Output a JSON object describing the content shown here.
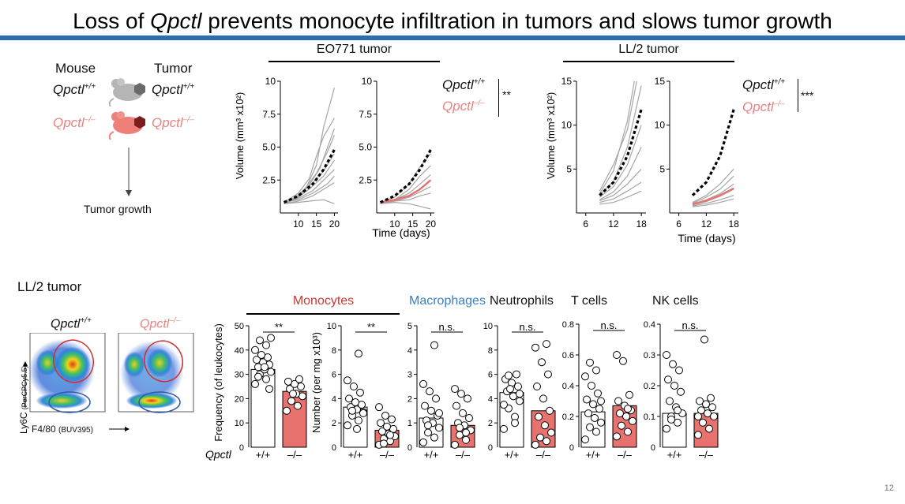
{
  "title": {
    "pre": "Loss of ",
    "gene": "Qpctl",
    "post": " prevents monocyte infiltration in tumors and slows tumor growth"
  },
  "schematic": {
    "mouse_label": "Mouse",
    "tumor_label": "Tumor",
    "wt_label": "Qpctl",
    "wt_sup": "+/+",
    "ko_label": "Qpctl",
    "ko_sup": "–/–",
    "arrow_label": "Tumor growth"
  },
  "colors": {
    "accent_bar": "#2a6db3",
    "ko": "#e8726e",
    "ko_text": "#e8837f",
    "wt_line": "#000000",
    "gray_line": "#a5a5a5",
    "macrophage_blue": "#3a7fc1",
    "monocyte_red": "#c33b34"
  },
  "growth": {
    "eo771_header": "EO771 tumor",
    "ll2_header": "LL/2 tumor",
    "ylabel": "Volume (mm³ x10²)",
    "xlabel": "Time (days)",
    "eo771_sig": "**",
    "ll2_sig": "***"
  },
  "flow": {
    "section_title": "LL/2 tumor",
    "wt_label": "Qpctl",
    "wt_sup": "+/+",
    "ko_label": "Qpctl",
    "ko_sup": "–/–",
    "yaxis_label": "Ly6C",
    "yaxis_sub": "(PerCPCy5.5)",
    "xaxis_label": "F4/80",
    "xaxis_sub": "(BUV395)"
  },
  "dot_panels": {
    "genotype_label": "Qpctl",
    "group_labels": [
      "+/+",
      "–/–"
    ],
    "freq_ylabel": "Frequency (of leukocytes)",
    "num_ylabel": "Number (per mg x10³)"
  },
  "chart_data": [
    {
      "type": "line",
      "title": "EO771 tumor",
      "panel": "Qpctl+/+",
      "xlabel": "",
      "ylabel": "Volume (mm³ x10²)",
      "x_ticks": [
        10,
        15,
        20
      ],
      "y_ticks": [
        "2.5",
        "5.0",
        "7.5",
        "10"
      ],
      "xlim": [
        5,
        21
      ],
      "ylim": [
        0,
        10
      ],
      "mean": {
        "x": [
          6,
          10,
          14,
          17,
          20
        ],
        "y": [
          0.8,
          1.3,
          2.2,
          3.3,
          4.8
        ],
        "color": "#000000",
        "dashed": true
      },
      "individual": [
        [
          [
            6,
            0.8
          ],
          [
            9,
            1.0
          ],
          [
            12,
            1.8
          ],
          [
            15,
            3.6
          ],
          [
            17,
            6.5
          ],
          [
            20,
            9.5
          ]
        ],
        [
          [
            6,
            0.8
          ],
          [
            10,
            1.5
          ],
          [
            13,
            2.6
          ],
          [
            15,
            4.3
          ],
          [
            17,
            5.8
          ],
          [
            20,
            7.2
          ]
        ],
        [
          [
            6,
            0.9
          ],
          [
            9,
            1.1
          ],
          [
            12,
            1.9
          ],
          [
            15,
            3.0
          ],
          [
            18,
            4.6
          ],
          [
            20,
            5.9
          ]
        ],
        [
          [
            6,
            0.7
          ],
          [
            10,
            1.2
          ],
          [
            13,
            2.1
          ],
          [
            16,
            3.4
          ],
          [
            20,
            6.4
          ]
        ],
        [
          [
            6,
            0.8
          ],
          [
            10,
            1.3
          ],
          [
            14,
            2.3
          ],
          [
            17,
            3.2
          ],
          [
            20,
            4.5
          ]
        ],
        [
          [
            6,
            0.8
          ],
          [
            9,
            1.0
          ],
          [
            13,
            1.8
          ],
          [
            17,
            2.8
          ],
          [
            20,
            4.0
          ]
        ],
        [
          [
            6,
            0.7
          ],
          [
            10,
            1.1
          ],
          [
            14,
            1.7
          ],
          [
            17,
            2.5
          ],
          [
            20,
            3.3
          ]
        ],
        [
          [
            6,
            0.8
          ],
          [
            10,
            1.0
          ],
          [
            14,
            1.5
          ],
          [
            18,
            2.2
          ],
          [
            20,
            2.8
          ]
        ],
        [
          [
            6,
            0.7
          ],
          [
            10,
            0.9
          ],
          [
            14,
            1.3
          ],
          [
            17,
            1.8
          ],
          [
            20,
            2.3
          ]
        ],
        [
          [
            6,
            0.7
          ],
          [
            10,
            0.8
          ],
          [
            13,
            0.9
          ],
          [
            17,
            1.0
          ],
          [
            20,
            0.7
          ]
        ]
      ]
    },
    {
      "type": "line",
      "title": "EO771 tumor",
      "panel": "Qpctl-/-",
      "xlabel": "Time (days)",
      "ylabel": "",
      "x_ticks": [
        10,
        15,
        20
      ],
      "y_ticks": [
        "2.5",
        "5.0",
        "7.5",
        "10"
      ],
      "xlim": [
        5,
        21
      ],
      "ylim": [
        0,
        10
      ],
      "series": [
        {
          "name": "Qpctl+/+",
          "x": [
            6,
            10,
            14,
            17,
            20
          ],
          "y": [
            0.8,
            1.3,
            2.2,
            3.3,
            4.8
          ],
          "color": "#000000",
          "dashed": true
        },
        {
          "name": "Qpctl-/-",
          "x": [
            6,
            10,
            14,
            17,
            20
          ],
          "y": [
            0.8,
            1.0,
            1.3,
            1.8,
            2.5
          ],
          "color": "#e8726e",
          "dashed": false
        }
      ],
      "individual": [
        [
          [
            6,
            0.8
          ],
          [
            10,
            1.2
          ],
          [
            14,
            2.2
          ],
          [
            17,
            3.5
          ],
          [
            20,
            4.5
          ]
        ],
        [
          [
            6,
            0.7
          ],
          [
            10,
            1.0
          ],
          [
            14,
            1.8
          ],
          [
            17,
            2.8
          ],
          [
            20,
            3.6
          ]
        ],
        [
          [
            6,
            0.8
          ],
          [
            10,
            1.0
          ],
          [
            14,
            1.5
          ],
          [
            17,
            2.2
          ],
          [
            20,
            2.9
          ]
        ],
        [
          [
            6,
            0.7
          ],
          [
            10,
            0.9
          ],
          [
            14,
            1.2
          ],
          [
            17,
            1.6
          ],
          [
            20,
            2.0
          ]
        ],
        [
          [
            6,
            0.8
          ],
          [
            10,
            0.9
          ],
          [
            14,
            1.0
          ],
          [
            17,
            1.3
          ],
          [
            20,
            1.5
          ]
        ],
        [
          [
            6,
            0.7
          ],
          [
            10,
            0.8
          ],
          [
            14,
            0.7
          ],
          [
            17,
            0.5
          ],
          [
            20,
            0.3
          ]
        ]
      ]
    },
    {
      "type": "line",
      "title": "LL/2 tumor",
      "panel": "Qpctl+/+",
      "xlabel": "",
      "ylabel": "Volume (mm³ x10²)",
      "x_ticks": [
        6,
        12,
        18
      ],
      "y_ticks": [
        "5",
        "10",
        "15"
      ],
      "xlim": [
        4,
        19
      ],
      "ylim": [
        0,
        15
      ],
      "mean": {
        "x": [
          9,
          12,
          15,
          18
        ],
        "y": [
          2.0,
          3.5,
          6.5,
          11.8
        ],
        "color": "#000000",
        "dashed": true
      },
      "individual": [
        [
          [
            9,
            2.5
          ],
          [
            12,
            5.5
          ],
          [
            15,
            9.5
          ],
          [
            17,
            15
          ]
        ],
        [
          [
            9,
            2.2
          ],
          [
            12,
            4.8
          ],
          [
            15,
            10.5
          ],
          [
            16.5,
            15
          ]
        ],
        [
          [
            9,
            2.0
          ],
          [
            12,
            3.6
          ],
          [
            15,
            7.5
          ],
          [
            18,
            14.5
          ]
        ],
        [
          [
            9,
            1.8
          ],
          [
            12,
            3.0
          ],
          [
            15,
            5.5
          ],
          [
            18,
            10.0
          ]
        ],
        [
          [
            9,
            1.5
          ],
          [
            12,
            2.4
          ],
          [
            15,
            4.2
          ],
          [
            18,
            7.5
          ]
        ],
        [
          [
            9,
            1.4
          ],
          [
            12,
            2.0
          ],
          [
            15,
            3.3
          ],
          [
            18,
            5.0
          ]
        ],
        [
          [
            9,
            1.2
          ],
          [
            12,
            1.6
          ],
          [
            15,
            2.5
          ],
          [
            18,
            3.5
          ]
        ],
        [
          [
            9,
            1.0
          ],
          [
            12,
            1.2
          ],
          [
            15,
            1.8
          ],
          [
            18,
            2.5
          ]
        ]
      ]
    },
    {
      "type": "line",
      "title": "LL/2 tumor",
      "panel": "Qpctl-/-",
      "xlabel": "Time (days)",
      "ylabel": "",
      "x_ticks": [
        6,
        12,
        18
      ],
      "y_ticks": [
        "5",
        "10",
        "15"
      ],
      "xlim": [
        4,
        19
      ],
      "ylim": [
        0,
        15
      ],
      "series": [
        {
          "name": "Qpctl+/+",
          "x": [
            9,
            12,
            15,
            18
          ],
          "y": [
            2.0,
            3.5,
            6.5,
            11.8
          ],
          "color": "#000000",
          "dashed": true
        },
        {
          "name": "Qpctl-/-",
          "x": [
            9,
            12,
            15,
            18
          ],
          "y": [
            1.0,
            1.4,
            2.0,
            2.8
          ],
          "color": "#e8726e",
          "dashed": false
        }
      ],
      "individual": [
        [
          [
            9,
            1.2
          ],
          [
            12,
            2.0
          ],
          [
            15,
            3.3
          ],
          [
            18,
            5.0
          ]
        ],
        [
          [
            9,
            1.1
          ],
          [
            12,
            1.8
          ],
          [
            15,
            2.7
          ],
          [
            18,
            4.2
          ]
        ],
        [
          [
            9,
            1.0
          ],
          [
            12,
            1.5
          ],
          [
            15,
            2.2
          ],
          [
            18,
            3.3
          ]
        ],
        [
          [
            9,
            0.9
          ],
          [
            12,
            1.3
          ],
          [
            15,
            1.9
          ],
          [
            18,
            2.7
          ]
        ],
        [
          [
            9,
            0.8
          ],
          [
            12,
            1.1
          ],
          [
            15,
            1.5
          ],
          [
            18,
            2.0
          ]
        ],
        [
          [
            9,
            0.7
          ],
          [
            12,
            0.9
          ],
          [
            15,
            1.2
          ],
          [
            18,
            1.6
          ]
        ]
      ]
    },
    {
      "type": "scatter",
      "title": "Monocytes",
      "ylabel": "Frequency (of leukocytes)",
      "ylim": [
        0,
        50
      ],
      "y_ticks": [
        "10",
        "20",
        "30",
        "40",
        "50"
      ],
      "categories": [
        "+/+",
        "–/–"
      ],
      "bar_values": [
        32,
        23
      ],
      "significance": "**",
      "points": [
        [
          26,
          28,
          30,
          31,
          32,
          33,
          34,
          35,
          36,
          37,
          38,
          40,
          42,
          44,
          45,
          33,
          29,
          24
        ],
        [
          15,
          17,
          19,
          21,
          22,
          24,
          25,
          26,
          27,
          28,
          22
        ]
      ]
    },
    {
      "type": "scatter",
      "title": "Monocytes",
      "ylabel": "Number (per mg x10³)",
      "ylim": [
        0,
        10
      ],
      "y_ticks": [
        "2",
        "4",
        "6",
        "8",
        "10"
      ],
      "categories": [
        "+/+",
        "–/–"
      ],
      "bar_values": [
        3.3,
        1.4
      ],
      "significance": "**",
      "points": [
        [
          1.8,
          2.2,
          2.6,
          2.9,
          3.1,
          3.3,
          3.5,
          3.7,
          4.0,
          4.5,
          5.0,
          5.5,
          7.7,
          3.0,
          2.8,
          1.5
        ],
        [
          0.2,
          0.5,
          0.7,
          0.9,
          1.1,
          1.3,
          1.5,
          1.7,
          2.0,
          2.3,
          2.6,
          3.3,
          1.0,
          0.3
        ]
      ]
    },
    {
      "type": "scatter",
      "title": "Macrophages",
      "ylabel": "",
      "ylim": [
        0,
        5
      ],
      "y_ticks": [
        "1",
        "2",
        "3",
        "4",
        "5"
      ],
      "categories": [
        "+/+",
        "–/–"
      ],
      "bar_values": [
        1.2,
        0.9
      ],
      "significance": "n.s.",
      "points": [
        [
          0.2,
          0.4,
          0.6,
          0.8,
          1.0,
          1.1,
          1.3,
          1.5,
          1.7,
          2.0,
          2.3,
          2.6,
          4.2,
          0.9,
          1.4
        ],
        [
          0.1,
          0.3,
          0.5,
          0.7,
          0.9,
          1.0,
          1.2,
          1.4,
          1.7,
          2.0,
          2.2,
          2.4,
          0.6,
          0.8
        ]
      ]
    },
    {
      "type": "scatter",
      "title": "Neutrophils",
      "ylabel": "",
      "ylim": [
        0,
        10
      ],
      "y_ticks": [
        "2",
        "4",
        "6",
        "8",
        "10"
      ],
      "categories": [
        "+/+",
        "–/–"
      ],
      "bar_values": [
        4.5,
        3.0
      ],
      "significance": "n.s.",
      "points": [
        [
          1.5,
          2.5,
          3.2,
          3.8,
          4.2,
          4.6,
          5.0,
          5.3,
          5.6,
          6.0,
          4.8,
          3.5,
          2.0,
          5.9,
          4.4
        ],
        [
          0.2,
          0.5,
          0.8,
          1.2,
          1.8,
          2.5,
          3.0,
          4.0,
          5.0,
          6.0,
          7.0,
          8.2,
          8.5
        ]
      ]
    },
    {
      "type": "scatter",
      "title": "T cells",
      "ylabel": "",
      "ylim": [
        0,
        0.8
      ],
      "y_ticks": [
        "0.2",
        "0.4",
        "0.6",
        "0.8"
      ],
      "categories": [
        "+/+",
        "–/–"
      ],
      "bar_values": [
        0.23,
        0.27
      ],
      "significance": "n.s.",
      "points": [
        [
          0.05,
          0.1,
          0.13,
          0.16,
          0.19,
          0.22,
          0.25,
          0.28,
          0.31,
          0.35,
          0.4,
          0.46,
          0.5,
          0.55,
          0.3
        ],
        [
          0.07,
          0.1,
          0.14,
          0.17,
          0.2,
          0.22,
          0.24,
          0.27,
          0.3,
          0.34,
          0.56,
          0.6,
          0.25
        ]
      ]
    },
    {
      "type": "scatter",
      "title": "NK cells",
      "ylabel": "",
      "ylim": [
        0,
        0.4
      ],
      "y_ticks": [
        "0.1",
        "0.2",
        "0.3",
        "0.4"
      ],
      "categories": [
        "+/+",
        "–/–"
      ],
      "bar_values": [
        0.11,
        0.11
      ],
      "significance": "n.s.",
      "points": [
        [
          0.06,
          0.08,
          0.1,
          0.11,
          0.13,
          0.15,
          0.18,
          0.2,
          0.22,
          0.25,
          0.27,
          0.3,
          0.12,
          0.09
        ],
        [
          0.04,
          0.06,
          0.08,
          0.1,
          0.11,
          0.12,
          0.13,
          0.14,
          0.15,
          0.16,
          0.35,
          0.1
        ]
      ]
    }
  ]
}
